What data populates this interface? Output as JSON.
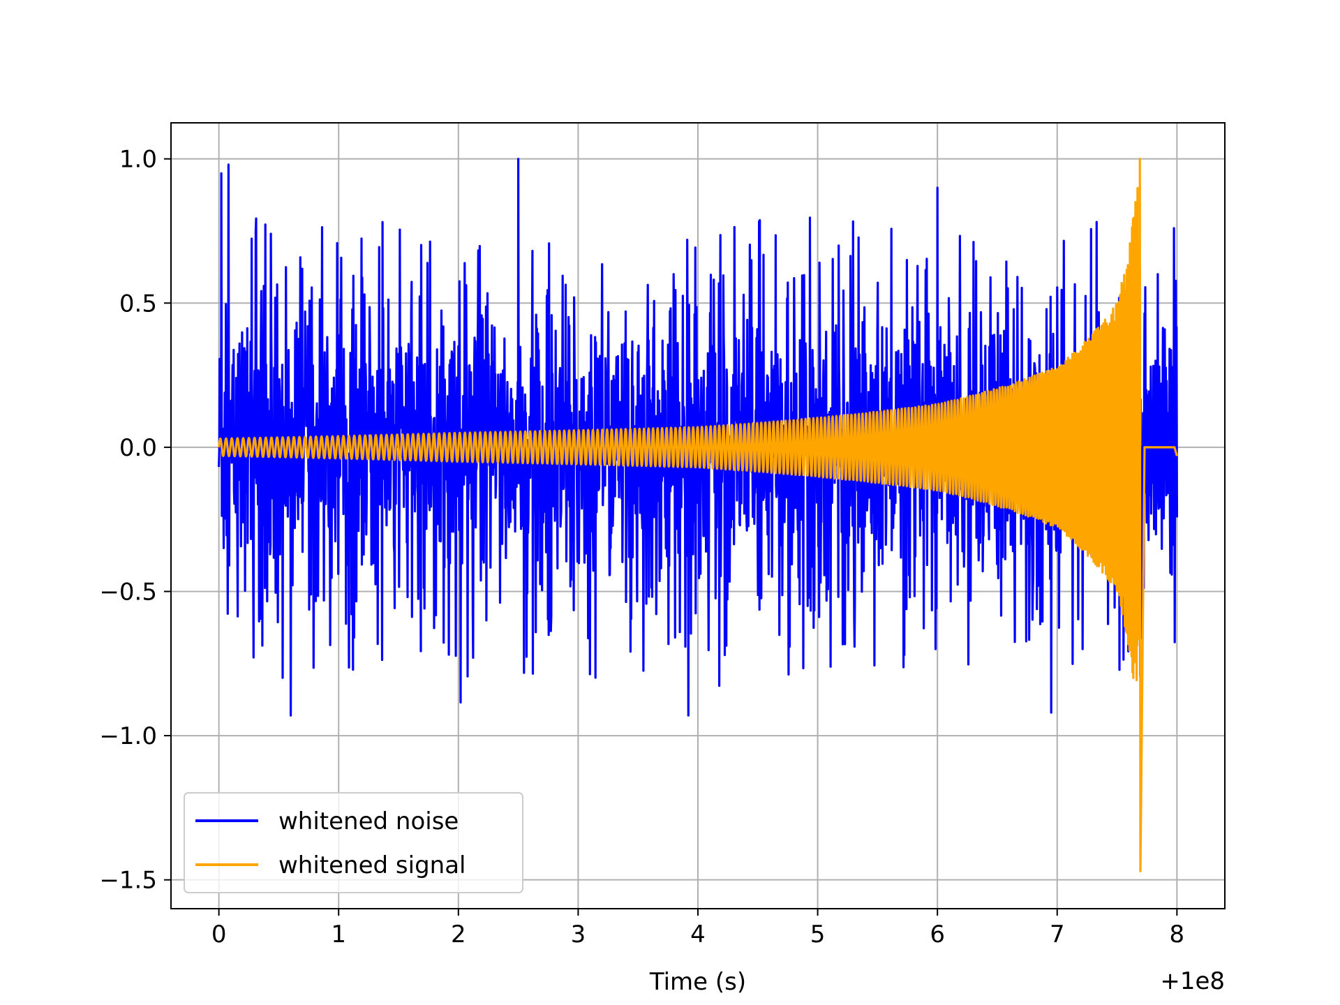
{
  "chart_data": {
    "type": "line",
    "xlabel": "Time (s)",
    "ylabel": "",
    "xlim": [
      -0.4,
      8.4
    ],
    "ylim": [
      -1.6,
      1.125
    ],
    "x_offset_label": "+1e8",
    "xticks": [
      0,
      1,
      2,
      3,
      4,
      5,
      6,
      7,
      8
    ],
    "xtick_labels": [
      "0",
      "1",
      "2",
      "3",
      "4",
      "5",
      "6",
      "7",
      "8"
    ],
    "yticks": [
      1.0,
      0.5,
      0.0,
      -0.5,
      -1.0,
      -1.5
    ],
    "ytick_labels": [
      "1.0",
      "0.5",
      "0.0",
      "−0.5",
      "−1.0",
      "−1.5"
    ],
    "grid": true,
    "legend_position": "lower-left",
    "series": [
      {
        "name": "whitened noise",
        "color": "#0000ff",
        "x_range": [
          0,
          8
        ],
        "envelope": {
          "typical_upper": 0.55,
          "typical_lower": -0.6,
          "max": 1.0,
          "min": -0.93
        },
        "notable_peaks": [
          {
            "x": 0.02,
            "y": 0.95
          },
          {
            "x": 0.08,
            "y": 0.98
          },
          {
            "x": 2.5,
            "y": 1.0
          },
          {
            "x": 0.6,
            "y": -0.93
          },
          {
            "x": 3.92,
            "y": -0.93
          },
          {
            "x": 6.0,
            "y": 0.9
          },
          {
            "x": 6.95,
            "y": -0.92
          }
        ]
      },
      {
        "name": "whitened signal",
        "color": "#ffa500",
        "x_range": [
          0,
          8
        ],
        "description_points": [
          {
            "x": 0.0,
            "amp": 0.03
          },
          {
            "x": 2.0,
            "amp": 0.05
          },
          {
            "x": 4.0,
            "amp": 0.07
          },
          {
            "x": 6.0,
            "amp": 0.15
          },
          {
            "x": 7.0,
            "amp": 0.28
          },
          {
            "x": 7.5,
            "amp": 0.5
          },
          {
            "x": 7.7,
            "amp": 1.0
          }
        ],
        "peak": {
          "x": 7.69,
          "y": 1.0
        },
        "trough": {
          "x": 7.69,
          "y": -1.47
        },
        "tail_value_after_merger": 0.0
      }
    ]
  }
}
